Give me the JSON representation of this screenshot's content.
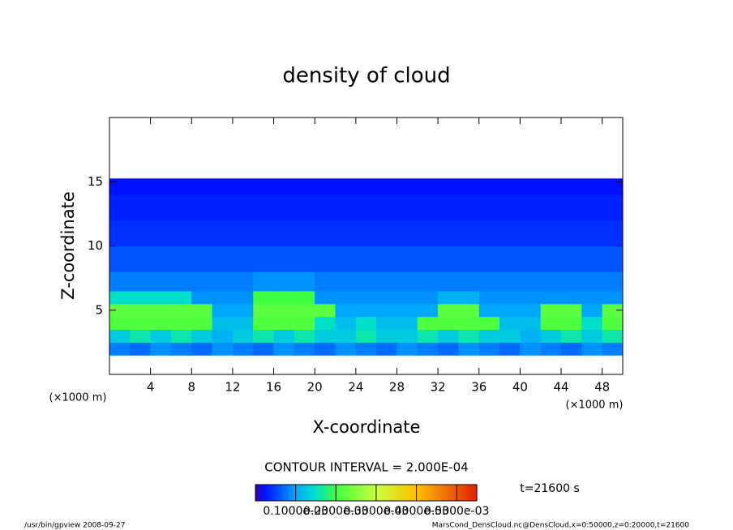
{
  "chart_data": {
    "type": "contour",
    "title": "density of cloud",
    "x_label": "X-coordinate",
    "y_label": "Z-coordinate",
    "x_unit": "(×1000 m)",
    "y_unit": "(×1000 m)",
    "xlim": [
      0,
      50
    ],
    "ylim": [
      0,
      20
    ],
    "xticks": [
      4,
      8,
      12,
      16,
      20,
      24,
      28,
      32,
      36,
      40,
      44,
      48
    ],
    "yticks": [
      5,
      10,
      15
    ],
    "xbins": [
      0,
      2,
      4,
      6,
      8,
      10,
      12,
      14,
      16,
      18,
      20,
      22,
      24,
      26,
      28,
      30,
      32,
      34,
      36,
      38,
      40,
      42,
      44,
      46,
      48,
      50
    ],
    "ybins": [
      1.5,
      2.5,
      3.5,
      4.5,
      5.5,
      6.5,
      8,
      10,
      12,
      14,
      15.25
    ],
    "values": [
      [
        8e-05,
        7e-05,
        9e-05,
        8e-05,
        7e-05,
        9e-05,
        8e-05,
        7e-05,
        9e-05,
        8e-05,
        7e-05,
        9e-05,
        8e-05,
        7e-05,
        9e-05,
        8e-05,
        7e-05,
        9e-05,
        8e-05,
        7e-05,
        9e-05,
        8e-05,
        7e-05,
        9e-05,
        8e-05
      ],
      [
        0.00013,
        0.00016,
        0.00013,
        0.00016,
        0.00013,
        0.00011,
        0.00013,
        0.00016,
        0.00013,
        0.00016,
        0.00013,
        0.00013,
        0.00016,
        0.00013,
        0.00013,
        0.00016,
        0.00013,
        0.00016,
        0.00013,
        0.00013,
        0.00011,
        0.00013,
        0.00016,
        0.00013,
        0.00016
      ],
      [
        0.00021,
        0.00021,
        0.00021,
        0.00021,
        0.00021,
        0.00012,
        0.00012,
        0.00021,
        0.00021,
        0.00021,
        0.00015,
        0.00012,
        0.00015,
        0.00012,
        0.00012,
        0.00021,
        0.00021,
        0.00021,
        0.00021,
        0.00012,
        0.00012,
        0.00021,
        0.00021,
        0.00015,
        0.00021
      ],
      [
        0.00022,
        0.00022,
        0.00022,
        0.00022,
        0.00022,
        0.0001,
        0.0001,
        0.00022,
        0.00022,
        0.00022,
        0.00022,
        0.0001,
        0.0001,
        0.0001,
        0.0001,
        0.0001,
        0.00022,
        0.00022,
        0.0001,
        0.0001,
        0.0001,
        0.00022,
        0.00022,
        0.0001,
        0.00022
      ],
      [
        0.00015,
        0.00015,
        0.00015,
        0.00015,
        9e-05,
        9e-05,
        9e-05,
        0.0002,
        0.0002,
        0.0002,
        9e-05,
        9e-05,
        9e-05,
        9e-05,
        9e-05,
        9e-05,
        0.00011,
        0.00011,
        9e-05,
        9e-05,
        9e-05,
        9e-05,
        9e-05,
        9e-05,
        9e-05
      ],
      [
        8e-05,
        8e-05,
        8e-05,
        8e-05,
        8e-05,
        8e-05,
        8e-05,
        9e-05,
        9e-05,
        9e-05,
        8e-05,
        8e-05,
        8e-05,
        8e-05,
        8e-05,
        8e-05,
        8e-05,
        8e-05,
        8e-05,
        8e-05,
        8e-05,
        8e-05,
        8e-05,
        8e-05,
        8e-05
      ],
      [
        6e-05,
        6e-05,
        6e-05,
        6e-05,
        6e-05,
        6e-05,
        6e-05,
        6e-05,
        6e-05,
        6e-05,
        6e-05,
        6e-05,
        6e-05,
        6e-05,
        6e-05,
        6e-05,
        6e-05,
        6e-05,
        6e-05,
        6e-05,
        6e-05,
        6e-05,
        6e-05,
        6e-05,
        6e-05
      ],
      [
        4e-05,
        4e-05,
        4e-05,
        4e-05,
        4e-05,
        4e-05,
        4e-05,
        4e-05,
        4e-05,
        4e-05,
        4e-05,
        4e-05,
        4e-05,
        4e-05,
        4e-05,
        4e-05,
        4e-05,
        4e-05,
        4e-05,
        4e-05,
        4e-05,
        4e-05,
        4e-05,
        4e-05,
        4e-05
      ],
      [
        3e-05,
        3e-05,
        3e-05,
        3e-05,
        3e-05,
        3e-05,
        3e-05,
        3e-05,
        3e-05,
        3e-05,
        3e-05,
        3e-05,
        3e-05,
        3e-05,
        3e-05,
        3e-05,
        3e-05,
        3e-05,
        3e-05,
        3e-05,
        3e-05,
        3e-05,
        3e-05,
        3e-05,
        3e-05
      ],
      [
        2e-05,
        2e-05,
        2e-05,
        2e-05,
        2e-05,
        2e-05,
        2e-05,
        2e-05,
        2e-05,
        2e-05,
        2e-05,
        2e-05,
        2e-05,
        2e-05,
        2e-05,
        2e-05,
        2e-05,
        2e-05,
        2e-05,
        2e-05,
        2e-05,
        2e-05,
        2e-05,
        2e-05,
        2e-05
      ]
    ],
    "clim": [
      0,
      0.00055
    ],
    "colormap": [
      {
        "value": 0,
        "color": "#3c0096"
      },
      {
        "value": 2e-05,
        "color": "#0010ff"
      },
      {
        "value": 5e-05,
        "color": "#0040ff"
      },
      {
        "value": 0.0001,
        "color": "#00a8ff"
      },
      {
        "value": 0.00015,
        "color": "#00e0c8"
      },
      {
        "value": 0.0002,
        "color": "#40ff40"
      },
      {
        "value": 0.0003,
        "color": "#c8ff40"
      },
      {
        "value": 0.0004,
        "color": "#ffc000"
      },
      {
        "value": 0.00055,
        "color": "#e02000"
      }
    ],
    "cticks": [
      {
        "value": 0.0001,
        "label": "0.1000e-03"
      },
      {
        "value": 0.0002,
        "label": "0.2000e-03"
      },
      {
        "value": 0.0003,
        "label": "0.3000e-03"
      },
      {
        "value": 0.0004,
        "label": "0.4000e-03"
      },
      {
        "value": 0.0005,
        "label": "0.5000e-03"
      }
    ],
    "contour_interval": "CONTOUR INTERVAL = 2.000E-04",
    "time": "t=21600 s",
    "footer_left": "/usr/bin/gpview  2008-09-27",
    "footer_right": "MarsCond_DensCloud.nc@DensCloud,x=0:50000,z=0:20000,t=21600"
  }
}
